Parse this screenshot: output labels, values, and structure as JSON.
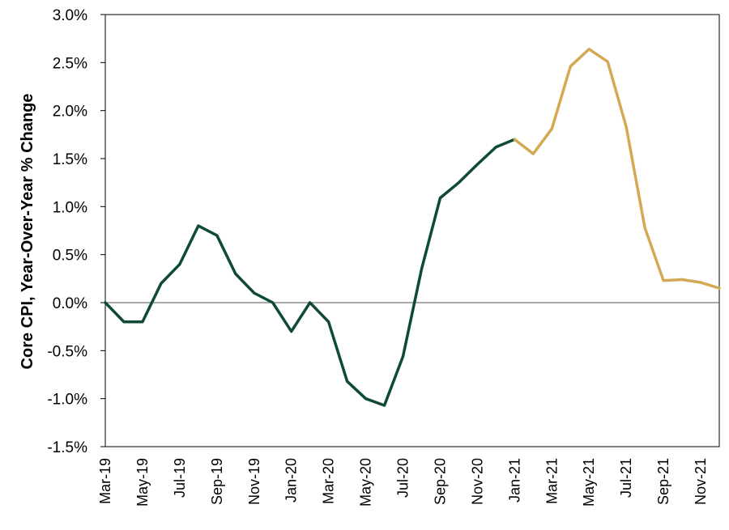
{
  "chart_data": {
    "type": "line",
    "ylabel": "Core CPI, Year-Over-Year % Change",
    "xlabel": "",
    "title": "",
    "ylim": [
      -1.5,
      3.0
    ],
    "y_ticks": [
      3.0,
      2.5,
      2.0,
      1.5,
      1.0,
      0.5,
      0.0,
      -0.5,
      -1.0,
      -1.5
    ],
    "y_tick_labels": [
      "3.0%",
      "2.5%",
      "2.0%",
      "1.5%",
      "1.0%",
      "0.5%",
      "0.0%",
      "-0.5%",
      "-1.0%",
      "-1.5%"
    ],
    "x_categories": [
      "Mar-19",
      "Apr-19",
      "May-19",
      "Jun-19",
      "Jul-19",
      "Aug-19",
      "Sep-19",
      "Oct-19",
      "Nov-19",
      "Dec-19",
      "Jan-20",
      "Feb-20",
      "Mar-20",
      "Apr-20",
      "May-20",
      "Jun-20",
      "Jul-20",
      "Aug-20",
      "Sep-20",
      "Oct-20",
      "Nov-20",
      "Dec-20",
      "Jan-21",
      "Feb-21",
      "Mar-21",
      "Apr-21",
      "May-21",
      "Jun-21",
      "Jul-21",
      "Aug-21",
      "Sep-21",
      "Oct-21",
      "Nov-21",
      "Dec-21"
    ],
    "x_tick_labels": [
      "Mar-19",
      "May-19",
      "Jul-19",
      "Sep-19",
      "Nov-19",
      "Jan-20",
      "Mar-20",
      "May-20",
      "Jul-20",
      "Sep-20",
      "Nov-20",
      "Jan-21",
      "Mar-21",
      "May-21",
      "Jul-21",
      "Sep-21",
      "Nov-21"
    ],
    "zero_line": true,
    "grid": false,
    "series": [
      {
        "color": "#0f4a36",
        "x": [
          "Mar-19",
          "Apr-19",
          "May-19",
          "Jun-19",
          "Jul-19",
          "Aug-19",
          "Sep-19",
          "Oct-19",
          "Nov-19",
          "Dec-19",
          "Jan-20",
          "Feb-20",
          "Mar-20",
          "Apr-20",
          "May-20",
          "Jun-20",
          "Jul-20",
          "Aug-20",
          "Sep-20",
          "Oct-20",
          "Nov-20",
          "Dec-20",
          "Jan-21"
        ],
        "values": [
          0.0,
          -0.2,
          -0.2,
          0.2,
          0.4,
          0.8,
          0.7,
          0.3,
          0.1,
          0.0,
          -0.3,
          0.0,
          -0.2,
          -0.82,
          -1.0,
          -1.07,
          -0.56,
          0.35,
          1.09,
          1.25,
          1.44,
          1.62,
          1.7
        ]
      },
      {
        "color": "#d4a955",
        "x": [
          "Jan-21",
          "Feb-21",
          "Mar-21",
          "Apr-21",
          "May-21",
          "Jun-21",
          "Jul-21",
          "Aug-21",
          "Sep-21",
          "Oct-21",
          "Nov-21",
          "Dec-21"
        ],
        "values": [
          1.7,
          1.55,
          1.81,
          2.46,
          2.64,
          2.51,
          1.83,
          0.78,
          0.23,
          0.24,
          0.21,
          0.15
        ]
      }
    ]
  }
}
